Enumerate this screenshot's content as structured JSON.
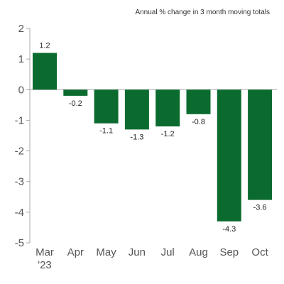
{
  "chart_data": {
    "type": "bar",
    "title": "",
    "subtitle": "Annual % change in 3 month moving totals",
    "xlabel": "",
    "ylabel": "",
    "categories": [
      "Mar",
      "Apr",
      "May",
      "Jun",
      "Jul",
      "Aug",
      "Sep",
      "Oct"
    ],
    "category_sublabels": [
      "'23",
      "",
      "",
      "",
      "",
      "",
      "",
      ""
    ],
    "values": [
      1.2,
      -0.2,
      -1.1,
      -1.3,
      -1.2,
      -0.8,
      -4.3,
      -3.6
    ],
    "data_labels": [
      "1.2",
      "-0.2",
      "-1.1",
      "-1.3",
      "-1.2",
      "-0.8",
      "-4.3",
      "-3.6"
    ],
    "ylim": [
      -5,
      2
    ],
    "yticks": [
      2,
      1,
      0,
      -1,
      -2,
      -3,
      -4,
      -5
    ],
    "ytick_labels": [
      "2",
      "1",
      "0",
      "-1",
      "-2",
      "-3",
      "-4",
      "-5"
    ],
    "grid": false,
    "legend": "none",
    "colors": {
      "bar": "#0b6b2f",
      "axis": "#aaaaaa",
      "text": "#555555"
    }
  }
}
